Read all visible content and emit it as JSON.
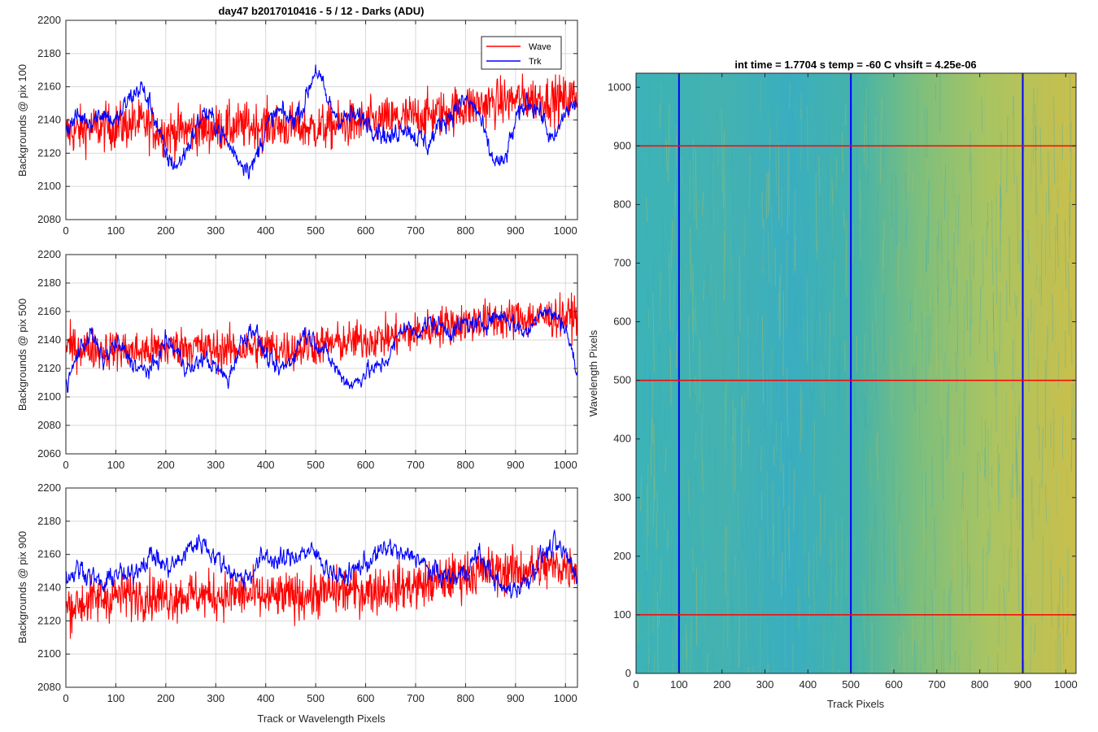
{
  "figure": {
    "left_title": "day47 b2017010416 - 5 / 12 - Darks (ADU)",
    "right_title": "int time = 1.7704 s    temp = -60 C    vhsift = 4.25e-06"
  },
  "colors": {
    "wave": "#ff0000",
    "trk": "#0000ff",
    "grid": "#d9d9d9",
    "axis": "#262626"
  },
  "chart_data": [
    {
      "type": "line",
      "ylabel": "Backgrounds @ pix 100",
      "xlabel": "",
      "xlim": [
        0,
        1024
      ],
      "ylim": [
        2080,
        2200
      ],
      "xticks": [
        0,
        100,
        200,
        300,
        400,
        500,
        600,
        700,
        800,
        900,
        1000
      ],
      "yticks": [
        2080,
        2100,
        2120,
        2140,
        2160,
        2180,
        2200
      ],
      "grid": true,
      "legend": "top-right",
      "series": [
        {
          "name": "Wave",
          "color": "#ff0000",
          "x": [
            0,
            50,
            100,
            150,
            200,
            250,
            300,
            350,
            400,
            450,
            500,
            550,
            600,
            650,
            700,
            750,
            800,
            850,
            900,
            950,
            1000,
            1024
          ],
          "y": [
            2132,
            2135,
            2136,
            2138,
            2132,
            2134,
            2135,
            2136,
            2137,
            2136,
            2135,
            2137,
            2138,
            2140,
            2142,
            2144,
            2148,
            2150,
            2152,
            2153,
            2152,
            2155
          ],
          "noise": 13
        },
        {
          "name": "Trk",
          "color": "#0000ff",
          "x": [
            0,
            25,
            50,
            75,
            100,
            125,
            150,
            175,
            200,
            225,
            250,
            275,
            300,
            325,
            350,
            375,
            400,
            425,
            450,
            475,
            500,
            525,
            550,
            575,
            600,
            625,
            650,
            675,
            700,
            725,
            750,
            775,
            800,
            825,
            850,
            875,
            900,
            925,
            950,
            975,
            1000,
            1024
          ],
          "y": [
            2135,
            2142,
            2140,
            2145,
            2138,
            2152,
            2160,
            2145,
            2118,
            2112,
            2128,
            2145,
            2138,
            2125,
            2115,
            2112,
            2135,
            2145,
            2140,
            2148,
            2172,
            2150,
            2140,
            2142,
            2140,
            2135,
            2128,
            2138,
            2130,
            2125,
            2138,
            2145,
            2152,
            2145,
            2118,
            2112,
            2138,
            2152,
            2145,
            2125,
            2145,
            2150
          ],
          "noise": 4
        }
      ]
    },
    {
      "type": "line",
      "ylabel": "Backgrounds @ pix 500",
      "xlabel": "",
      "xlim": [
        0,
        1024
      ],
      "ylim": [
        2060,
        2200
      ],
      "xticks": [
        0,
        100,
        200,
        300,
        400,
        500,
        600,
        700,
        800,
        900,
        1000
      ],
      "yticks": [
        2060,
        2080,
        2100,
        2120,
        2140,
        2160,
        2180,
        2200
      ],
      "grid": true,
      "series": [
        {
          "name": "Wave",
          "color": "#ff0000",
          "x": [
            0,
            50,
            100,
            150,
            200,
            250,
            300,
            350,
            400,
            450,
            500,
            550,
            600,
            650,
            700,
            750,
            800,
            850,
            900,
            950,
            1000,
            1024
          ],
          "y": [
            2135,
            2134,
            2133,
            2132,
            2134,
            2136,
            2133,
            2134,
            2135,
            2133,
            2136,
            2138,
            2140,
            2142,
            2145,
            2150,
            2152,
            2154,
            2155,
            2156,
            2156,
            2158
          ],
          "noise": 13
        },
        {
          "name": "Trk",
          "color": "#0000ff",
          "x": [
            0,
            25,
            50,
            75,
            100,
            125,
            150,
            175,
            200,
            225,
            250,
            275,
            300,
            325,
            350,
            375,
            400,
            425,
            450,
            475,
            500,
            525,
            550,
            575,
            600,
            625,
            650,
            675,
            700,
            725,
            750,
            775,
            800,
            825,
            850,
            875,
            900,
            925,
            950,
            975,
            1000,
            1024
          ],
          "y": [
            2105,
            2132,
            2145,
            2125,
            2138,
            2128,
            2118,
            2120,
            2140,
            2130,
            2118,
            2128,
            2120,
            2112,
            2138,
            2150,
            2128,
            2118,
            2125,
            2145,
            2140,
            2128,
            2115,
            2108,
            2118,
            2120,
            2130,
            2150,
            2145,
            2152,
            2150,
            2146,
            2152,
            2150,
            2155,
            2158,
            2150,
            2145,
            2162,
            2158,
            2150,
            2115
          ],
          "noise": 4
        }
      ]
    },
    {
      "type": "line",
      "ylabel": "Backgrounds @ pix 900",
      "xlabel": "Track or Wavelength Pixels",
      "xlim": [
        0,
        1024
      ],
      "ylim": [
        2080,
        2200
      ],
      "xticks": [
        0,
        100,
        200,
        300,
        400,
        500,
        600,
        700,
        800,
        900,
        1000
      ],
      "yticks": [
        2080,
        2100,
        2120,
        2140,
        2160,
        2180,
        2200
      ],
      "grid": true,
      "series": [
        {
          "name": "Wave",
          "color": "#ff0000",
          "x": [
            0,
            50,
            100,
            150,
            200,
            250,
            300,
            350,
            400,
            450,
            500,
            550,
            600,
            650,
            700,
            750,
            800,
            850,
            900,
            950,
            1000,
            1024
          ],
          "y": [
            2128,
            2132,
            2135,
            2136,
            2134,
            2136,
            2135,
            2136,
            2134,
            2135,
            2136,
            2138,
            2138,
            2140,
            2141,
            2144,
            2148,
            2150,
            2150,
            2152,
            2153,
            2152
          ],
          "noise": 13
        },
        {
          "name": "Trk",
          "color": "#0000ff",
          "x": [
            0,
            25,
            50,
            75,
            100,
            125,
            150,
            175,
            200,
            225,
            250,
            275,
            300,
            325,
            350,
            375,
            400,
            425,
            450,
            475,
            500,
            525,
            550,
            575,
            600,
            625,
            650,
            675,
            700,
            725,
            750,
            775,
            800,
            825,
            850,
            875,
            900,
            925,
            950,
            975,
            1000,
            1024
          ],
          "y": [
            2145,
            2152,
            2148,
            2140,
            2150,
            2145,
            2155,
            2160,
            2152,
            2155,
            2165,
            2168,
            2158,
            2152,
            2145,
            2150,
            2160,
            2155,
            2158,
            2162,
            2160,
            2152,
            2145,
            2150,
            2155,
            2160,
            2165,
            2158,
            2160,
            2150,
            2148,
            2145,
            2150,
            2160,
            2150,
            2138,
            2140,
            2145,
            2158,
            2165,
            2160,
            2148
          ],
          "noise": 4
        }
      ]
    },
    {
      "type": "heatmap",
      "xlabel": "Track Pixels",
      "ylabel": "Wavelength Pixels",
      "xlim": [
        0,
        1024
      ],
      "ylim": [
        0,
        1024
      ],
      "xticks": [
        0,
        100,
        200,
        300,
        400,
        500,
        600,
        700,
        800,
        900,
        1000
      ],
      "yticks": [
        0,
        100,
        200,
        300,
        400,
        500,
        600,
        700,
        800,
        900,
        1000
      ],
      "colormap": "parula",
      "vertical_markers": {
        "x": [
          100,
          500,
          900
        ],
        "color": "#0000ff"
      },
      "horizontal_markers": {
        "y": [
          100,
          500,
          900
        ],
        "color": "#ff0000"
      }
    }
  ]
}
